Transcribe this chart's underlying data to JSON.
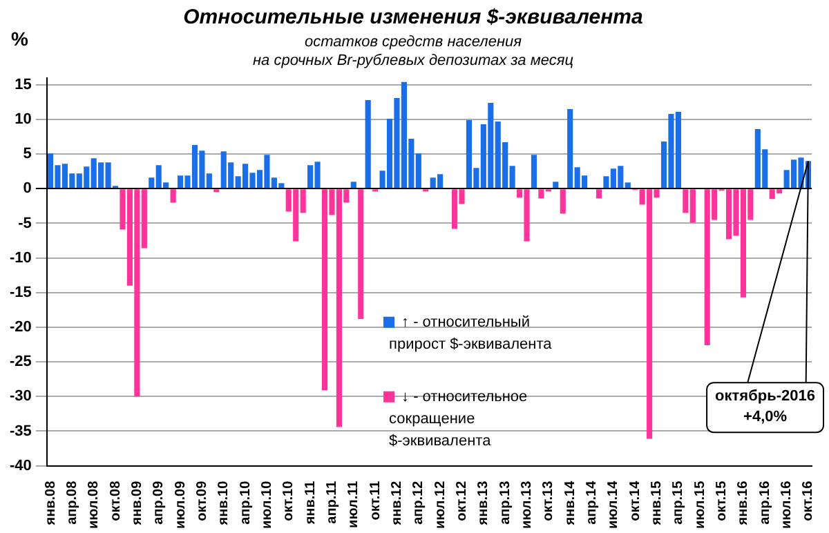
{
  "chart_data": {
    "type": "bar",
    "title": "Относительные изменения $-эквивалента",
    "subtitle": "остатков средств населения\nна срочных Br-рублевых депозитах за месяц",
    "ylabel": "%",
    "categories": [
      "янв.08",
      null,
      null,
      "апр.08",
      null,
      null,
      "июл.08",
      null,
      null,
      "окт.08",
      null,
      null,
      "янв.09",
      null,
      null,
      "апр.09",
      null,
      null,
      "июл.09",
      null,
      null,
      "окт.09",
      null,
      null,
      "янв.10",
      null,
      null,
      "апр.10",
      null,
      null,
      "июл.10",
      null,
      null,
      "окт.10",
      null,
      null,
      "янв.11",
      null,
      null,
      "апр.11",
      null,
      null,
      "июл.11",
      null,
      null,
      "окт.11",
      null,
      null,
      "янв.12",
      null,
      null,
      "апр.12",
      null,
      null,
      "июл.12",
      null,
      null,
      "окт.12",
      null,
      null,
      "янв.13",
      null,
      null,
      "апр.13",
      null,
      null,
      "июл.13",
      null,
      null,
      "окт.13",
      null,
      null,
      "янв.14",
      null,
      null,
      "апр.14",
      null,
      null,
      "июл.14",
      null,
      null,
      "окт.14",
      null,
      null,
      "янв.15",
      null,
      null,
      "апр.15",
      null,
      null,
      "июл.15",
      null,
      null,
      "окт.15",
      null,
      null,
      "янв.16",
      null,
      null,
      "апр.16",
      null,
      null,
      "июл.16",
      null,
      null,
      "окт.16"
    ],
    "stacked": true,
    "series": [
      {
        "name": "↑ - относительный прирост $-эквивалента",
        "color": "#1a6ee8",
        "values": [
          5.1,
          3.4,
          3.6,
          2.2,
          2.2,
          3.2,
          4.4,
          3.8,
          3.8,
          0.4,
          null,
          null,
          null,
          null,
          1.6,
          3.4,
          0.9,
          null,
          1.9,
          1.9,
          6.3,
          5.5,
          2.2,
          null,
          5.4,
          3.8,
          1.8,
          3.6,
          2.3,
          2.7,
          4.9,
          1.6,
          0.8,
          null,
          null,
          null,
          3.4,
          3.9,
          null,
          null,
          null,
          null,
          1.0,
          null,
          12.8,
          null,
          2.6,
          10.1,
          13.1,
          15.4,
          7.2,
          5.1,
          null,
          1.6,
          2.1,
          0,
          null,
          null,
          9.9,
          3.0,
          9.3,
          12.4,
          9.7,
          6.7,
          3.3,
          null,
          null,
          4.9,
          null,
          null,
          1.0,
          null,
          11.5,
          3.1,
          1.9,
          0.1,
          null,
          1.8,
          2.9,
          3.3,
          0.9,
          null,
          null,
          null,
          null,
          6.8,
          10.8,
          11.1,
          null,
          null,
          0,
          null,
          null,
          null,
          null,
          null,
          null,
          null,
          8.6,
          5.7,
          null,
          null,
          2.7,
          4.2,
          4.5,
          4.0
        ]
      },
      {
        "name": "↓ - относительное сокращение $-эквивалента",
        "color": "#ff3399",
        "values": [
          null,
          null,
          null,
          null,
          null,
          null,
          null,
          null,
          null,
          null,
          -5.9,
          -14.0,
          -30.0,
          -8.6,
          null,
          null,
          null,
          -2.0,
          null,
          null,
          null,
          null,
          null,
          -0.5,
          null,
          null,
          null,
          null,
          null,
          null,
          null,
          null,
          null,
          -3.3,
          -7.6,
          -3.5,
          null,
          null,
          -29.1,
          -3.8,
          -34.4,
          -2.0,
          null,
          -18.8,
          null,
          -0.4,
          null,
          null,
          null,
          null,
          null,
          null,
          -0.4,
          null,
          null,
          null,
          -5.8,
          -2.2,
          null,
          null,
          null,
          null,
          null,
          null,
          null,
          -1.3,
          -7.6,
          null,
          -1.4,
          -0.4,
          null,
          -3.6,
          null,
          null,
          null,
          null,
          -1.4,
          null,
          null,
          null,
          null,
          -0.2,
          -2.3,
          -36.1,
          -1.3,
          null,
          null,
          null,
          -3.5,
          -4.9,
          null,
          -22.6,
          -4.5,
          -0.3,
          -7.3,
          -6.8,
          -15.7,
          -4.5,
          null,
          null,
          -1.5,
          -0.7,
          null,
          null,
          null,
          null
        ]
      }
    ],
    "ylim": [
      -40,
      16
    ],
    "yticks": [
      15,
      10,
      5,
      0,
      -5,
      -10,
      -15,
      -20,
      -25,
      -30,
      -35,
      -40
    ],
    "grid": "y",
    "legend": "bottom",
    "annotations": [
      {
        "text": "октябрь-2016\n+4,0%",
        "x": "окт.16",
        "y": 4.0
      }
    ]
  }
}
